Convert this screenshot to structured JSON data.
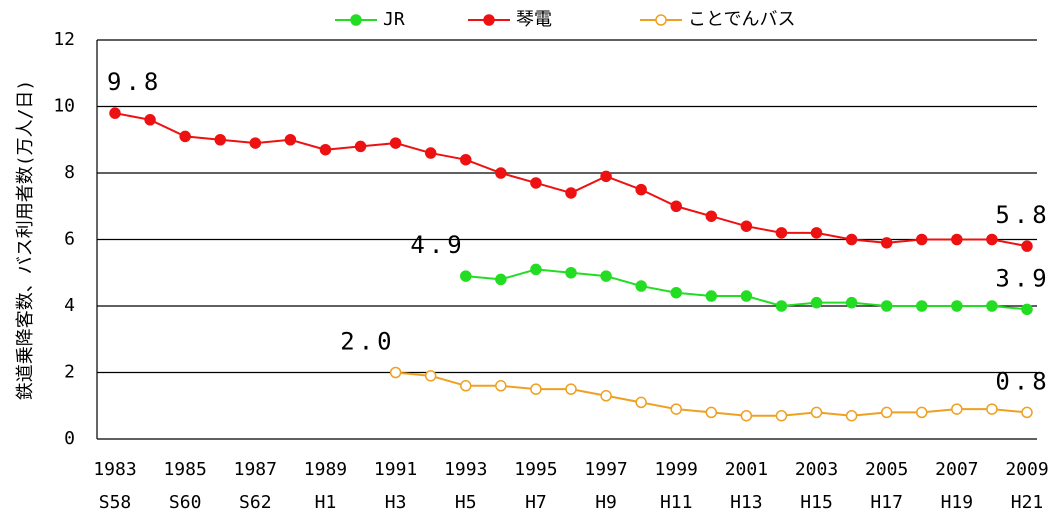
{
  "chart_data": {
    "type": "line",
    "ylabel": "鉄道乗降客数、バス利用者数(万人/日)",
    "categories": [
      "1983",
      null,
      "1985",
      null,
      "1987",
      null,
      "1989",
      null,
      "1991",
      null,
      "1993",
      null,
      "1995",
      null,
      "1997",
      null,
      "1999",
      null,
      "2001",
      null,
      "2003",
      null,
      "2005",
      null,
      "2007",
      null,
      "2009"
    ],
    "era_labels": [
      "S58",
      null,
      "S60",
      null,
      "S62",
      null,
      "H1",
      null,
      "H3",
      null,
      "H5",
      null,
      "H7",
      null,
      "H9",
      null,
      "H11",
      null,
      "H13",
      null,
      "H15",
      null,
      "H17",
      null,
      "H19",
      null,
      "H21"
    ],
    "ylim": [
      0,
      12
    ],
    "yticks": [
      0,
      2,
      4,
      6,
      8,
      10,
      12
    ],
    "grid": true,
    "legend": "top",
    "series": [
      {
        "name": "JR",
        "color": "#22dd22",
        "marker": "filled",
        "values": [
          null,
          null,
          null,
          null,
          null,
          null,
          null,
          null,
          null,
          null,
          4.9,
          4.8,
          5.1,
          5.0,
          4.9,
          4.6,
          4.4,
          4.3,
          4.3,
          4.0,
          4.1,
          4.1,
          4.0,
          4.0,
          4.0,
          4.0,
          3.9
        ],
        "value_labels": [
          null,
          null,
          null,
          null,
          null,
          null,
          null,
          null,
          null,
          null,
          "4.9",
          null,
          null,
          null,
          null,
          null,
          null,
          null,
          null,
          null,
          null,
          null,
          null,
          null,
          null,
          null,
          "3.9"
        ]
      },
      {
        "name": "琴電",
        "color": "#ee1111",
        "marker": "filled",
        "values": [
          9.8,
          9.6,
          9.1,
          9.0,
          8.9,
          9.0,
          8.7,
          8.8,
          8.9,
          8.6,
          8.4,
          8.0,
          7.7,
          7.4,
          7.9,
          7.5,
          7.0,
          6.7,
          6.4,
          6.2,
          6.2,
          6.0,
          5.9,
          6.0,
          6.0,
          6.0,
          5.8
        ],
        "value_labels": [
          "9.8",
          null,
          null,
          null,
          null,
          null,
          null,
          null,
          null,
          null,
          null,
          null,
          null,
          null,
          null,
          null,
          null,
          null,
          null,
          null,
          null,
          null,
          null,
          null,
          null,
          null,
          "5.8"
        ]
      },
      {
        "name": "ことでんバス",
        "color": "#f0a020",
        "marker": "hollow",
        "values": [
          null,
          null,
          null,
          null,
          null,
          null,
          null,
          null,
          2.0,
          1.9,
          1.6,
          1.6,
          1.5,
          1.5,
          1.3,
          1.1,
          0.9,
          0.8,
          0.7,
          0.7,
          0.8,
          0.7,
          0.8,
          0.8,
          0.9,
          0.9,
          0.8
        ],
        "value_labels": [
          null,
          null,
          null,
          null,
          null,
          null,
          null,
          null,
          "2.0",
          null,
          null,
          null,
          null,
          null,
          null,
          null,
          null,
          null,
          null,
          null,
          null,
          null,
          null,
          null,
          null,
          null,
          "0.8"
        ]
      }
    ]
  }
}
